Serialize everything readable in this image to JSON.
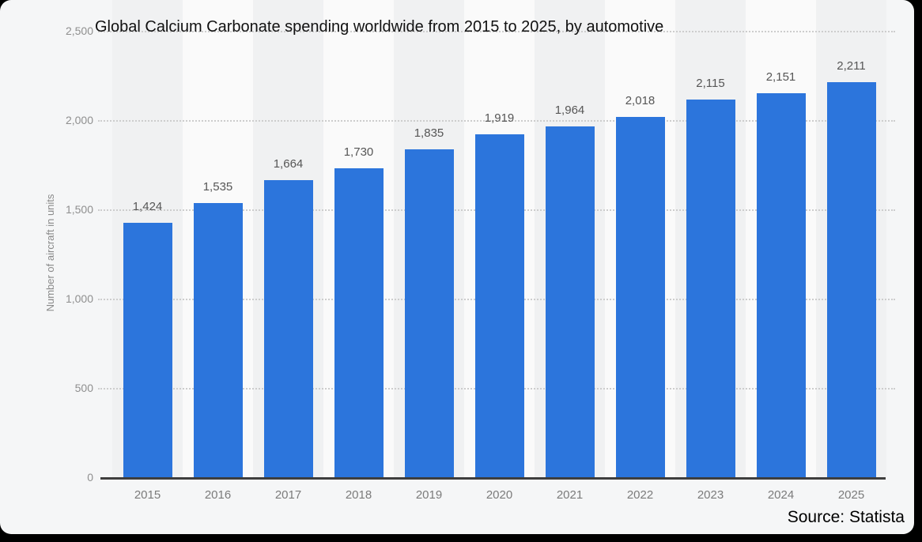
{
  "title": "Global Calcium Carbonate spending worldwide from 2015 to 2025, by automotive",
  "source": "Source: Statista",
  "y_axis": {
    "label": "Number of aircraft in units",
    "tick_values": [
      2500,
      2000,
      1500,
      1000,
      500,
      0
    ],
    "tick_labels": [
      "2,500",
      "2,000",
      "1,500",
      "1,000",
      "500",
      "0"
    ]
  },
  "chart_data": {
    "type": "bar",
    "title": "Global Calcium Carbonate spending worldwide from 2015 to 2025, by automotive",
    "categories": [
      "2015",
      "2016",
      "2017",
      "2018",
      "2019",
      "2020",
      "2021",
      "2022",
      "2023",
      "2024",
      "2025"
    ],
    "values": [
      1424,
      1535,
      1664,
      1730,
      1835,
      1919,
      1964,
      2018,
      2115,
      2151,
      2211
    ],
    "value_labels": [
      "1,424",
      "1,535",
      "1,664",
      "1,730",
      "1,835",
      "1,919",
      "1,964",
      "2,018",
      "2,115",
      "2,151",
      "2,211"
    ],
    "xlabel": "",
    "ylabel": "Number of aircraft in units",
    "ylim": [
      0,
      2500
    ],
    "grid": "horizontal-dotted",
    "legend": "none",
    "bar_color": "#2c75dc",
    "stripe_color_odd_years": "#f0f1f2",
    "stripe_color_even_years": "#fafafa",
    "panel_background": "#f5f6f7",
    "axis_line_color": "#3e3e3e"
  }
}
